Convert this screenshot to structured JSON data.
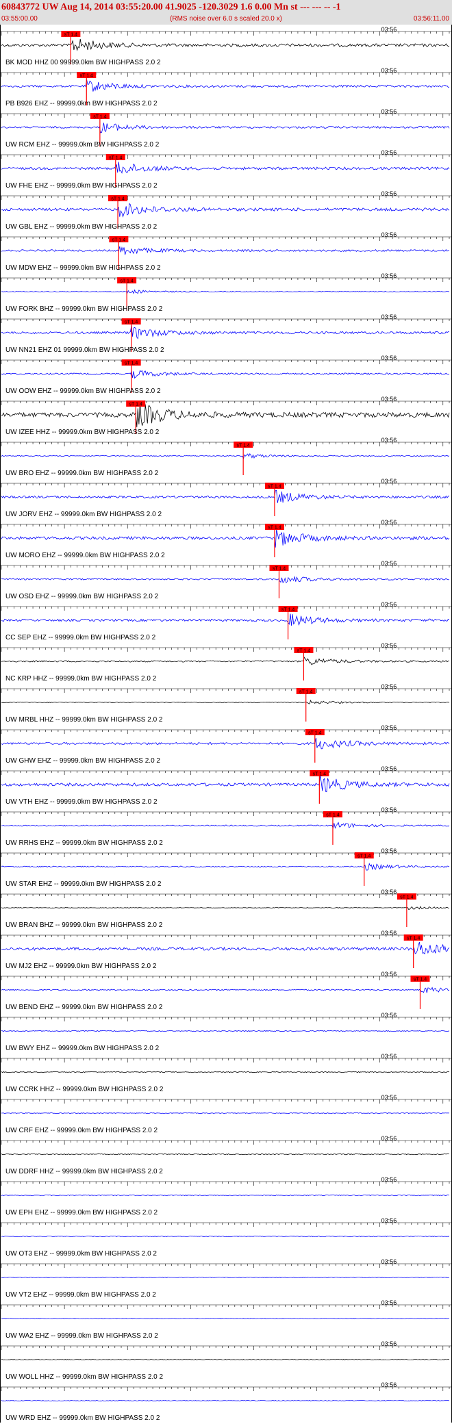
{
  "header": {
    "title": "60843772 UW Aug 14, 2014 03:55:20.00   41.9025 -120.3029  1.6 0.00 Mn st --- --- --   -1",
    "start_time": "03:55:00.00",
    "note": "(RMS noise over 6.0 s scaled 20.0 x)",
    "end_time": "03:56:11.00"
  },
  "colors": {
    "background": "#ffffff",
    "header_bg": "#e0e0e0",
    "header_text": "#cc0000",
    "pick": "#ff0000",
    "trace_blue": "#0000ff",
    "trace_black": "#000000",
    "label_text": "#000000"
  },
  "chart_data": {
    "type": "seismogram",
    "time_axis": {
      "start": "03:55:00.00",
      "end": "03:56:11.00",
      "minute_label": "03:56"
    },
    "pick_label": "sT 1.4",
    "traces": [
      {
        "label": "BK MOD HHZ 00 99999.0km BW  HIGHPASS  2.0  2",
        "color": "black",
        "pick_x": 0.155,
        "amp": 0.18
      },
      {
        "label": "PB B926 EHZ -- 99999.0km BW  HIGHPASS  2.0  2",
        "color": "blue",
        "pick_x": 0.19,
        "amp": 0.14
      },
      {
        "label": "UW RCM EHZ -- 99999.0km BW  HIGHPASS  2.0  2",
        "color": "blue",
        "pick_x": 0.22,
        "amp": 0.12
      },
      {
        "label": "UW FHE EHZ -- 99999.0km BW  HIGHPASS  2.0  2",
        "color": "blue",
        "pick_x": 0.255,
        "amp": 0.16
      },
      {
        "label": "UW GBL EHZ -- 99999.0km BW  HIGHPASS  2.0  2",
        "color": "blue",
        "pick_x": 0.26,
        "amp": 0.18
      },
      {
        "label": "UW MDW EHZ -- 99999.0km BW  HIGHPASS  2.0  2",
        "color": "blue",
        "pick_x": 0.262,
        "amp": 0.12
      },
      {
        "label": "UW FORK BHZ -- 99999.0km BW  HIGHPASS  2.0  2",
        "color": "blue",
        "pick_x": 0.28,
        "amp": 0.05
      },
      {
        "label": "UW NN21 EHZ 01 99999.0km BW  HIGHPASS  2.0  2",
        "color": "blue",
        "pick_x": 0.29,
        "amp": 0.15
      },
      {
        "label": "UW OOW EHZ -- 99999.0km BW  HIGHPASS  2.0  2",
        "color": "blue",
        "pick_x": 0.29,
        "amp": 0.1
      },
      {
        "label": "UW IZEE HHZ -- 99999.0km BW  HIGHPASS  2.0  2",
        "color": "black",
        "pick_x": 0.3,
        "amp": 0.3
      },
      {
        "label": "UW BRO EHZ -- 99999.0km BW  HIGHPASS  2.0  2",
        "color": "blue",
        "pick_x": 0.54,
        "amp": 0.06
      },
      {
        "label": "UW JORV EHZ -- 99999.0km BW  HIGHPASS  2.0  2",
        "color": "blue",
        "pick_x": 0.61,
        "amp": 0.15
      },
      {
        "label": "UW MORO EHZ -- 99999.0km BW  HIGHPASS  2.0  2",
        "color": "blue",
        "pick_x": 0.61,
        "amp": 0.2
      },
      {
        "label": "UW OSD EHZ -- 99999.0km BW  HIGHPASS  2.0  2",
        "color": "blue",
        "pick_x": 0.62,
        "amp": 0.1
      },
      {
        "label": "CC SEP EHZ -- 99999.0km BW  HIGHPASS  2.0  2",
        "color": "blue",
        "pick_x": 0.64,
        "amp": 0.15
      },
      {
        "label": "NC KRP HHZ -- 99999.0km BW  HIGHPASS  2.0  2",
        "color": "black",
        "pick_x": 0.675,
        "amp": 0.1
      },
      {
        "label": "UW MRBL HHZ -- 99999.0km BW  HIGHPASS  2.0  2",
        "color": "black",
        "pick_x": 0.68,
        "amp": 0.05
      },
      {
        "label": "UW GHW EHZ -- 99999.0km BW  HIGHPASS  2.0  2",
        "color": "blue",
        "pick_x": 0.7,
        "amp": 0.15
      },
      {
        "label": "UW VTH EHZ -- 99999.0km BW  HIGHPASS  2.0  2",
        "color": "blue",
        "pick_x": 0.71,
        "amp": 0.2
      },
      {
        "label": "UW RRHS EHZ -- 99999.0km BW  HIGHPASS  2.0  2",
        "color": "blue",
        "pick_x": 0.74,
        "amp": 0.08
      },
      {
        "label": "UW STAR EHZ -- 99999.0km BW  HIGHPASS  2.0  2",
        "color": "blue",
        "pick_x": 0.81,
        "amp": 0.08
      },
      {
        "label": "UW BRAN BHZ -- 99999.0km BW  HIGHPASS  2.0  2",
        "color": "black",
        "pick_x": 0.905,
        "amp": 0.04
      },
      {
        "label": "UW MJ2 EHZ -- 99999.0km BW  HIGHPASS  2.0  2",
        "color": "blue",
        "pick_x": 0.92,
        "amp": 0.2
      },
      {
        "label": "UW BEND EHZ -- 99999.0km BW  HIGHPASS  2.0  2",
        "color": "blue",
        "pick_x": 0.935,
        "amp": 0.08
      },
      {
        "label": "UW BWY EHZ -- 99999.0km BW  HIGHPASS  2.0  2",
        "color": "blue",
        "pick_x": null,
        "amp": 0.06
      },
      {
        "label": "UW CCRK HHZ -- 99999.0km BW  HIGHPASS  2.0  2",
        "color": "black",
        "pick_x": null,
        "amp": 0.06
      },
      {
        "label": "UW CRF EHZ -- 99999.0km BW  HIGHPASS  2.0  2",
        "color": "blue",
        "pick_x": null,
        "amp": 0.05
      },
      {
        "label": "UW DDRF HHZ -- 99999.0km BW  HIGHPASS  2.0  2",
        "color": "black",
        "pick_x": null,
        "amp": 0.07
      },
      {
        "label": "UW EPH EHZ -- 99999.0km BW  HIGHPASS  2.0  2",
        "color": "blue",
        "pick_x": null,
        "amp": 0.05
      },
      {
        "label": "UW OT3 EHZ -- 99999.0km BW  HIGHPASS  2.0  2",
        "color": "blue",
        "pick_x": null,
        "amp": 0.05
      },
      {
        "label": "UW VT2 EHZ -- 99999.0km BW  HIGHPASS  2.0  2",
        "color": "blue",
        "pick_x": null,
        "amp": 0.05
      },
      {
        "label": "UW WA2 EHZ -- 99999.0km BW  HIGHPASS  2.0  2",
        "color": "blue",
        "pick_x": null,
        "amp": 0.05
      },
      {
        "label": "UW WOLL HHZ -- 99999.0km BW  HIGHPASS  2.0  2",
        "color": "black",
        "pick_x": null,
        "amp": 0.06
      },
      {
        "label": "UW WRD EHZ -- 99999.0km BW  HIGHPASS  2.0  2",
        "color": "blue",
        "pick_x": null,
        "amp": 0.05
      }
    ]
  }
}
